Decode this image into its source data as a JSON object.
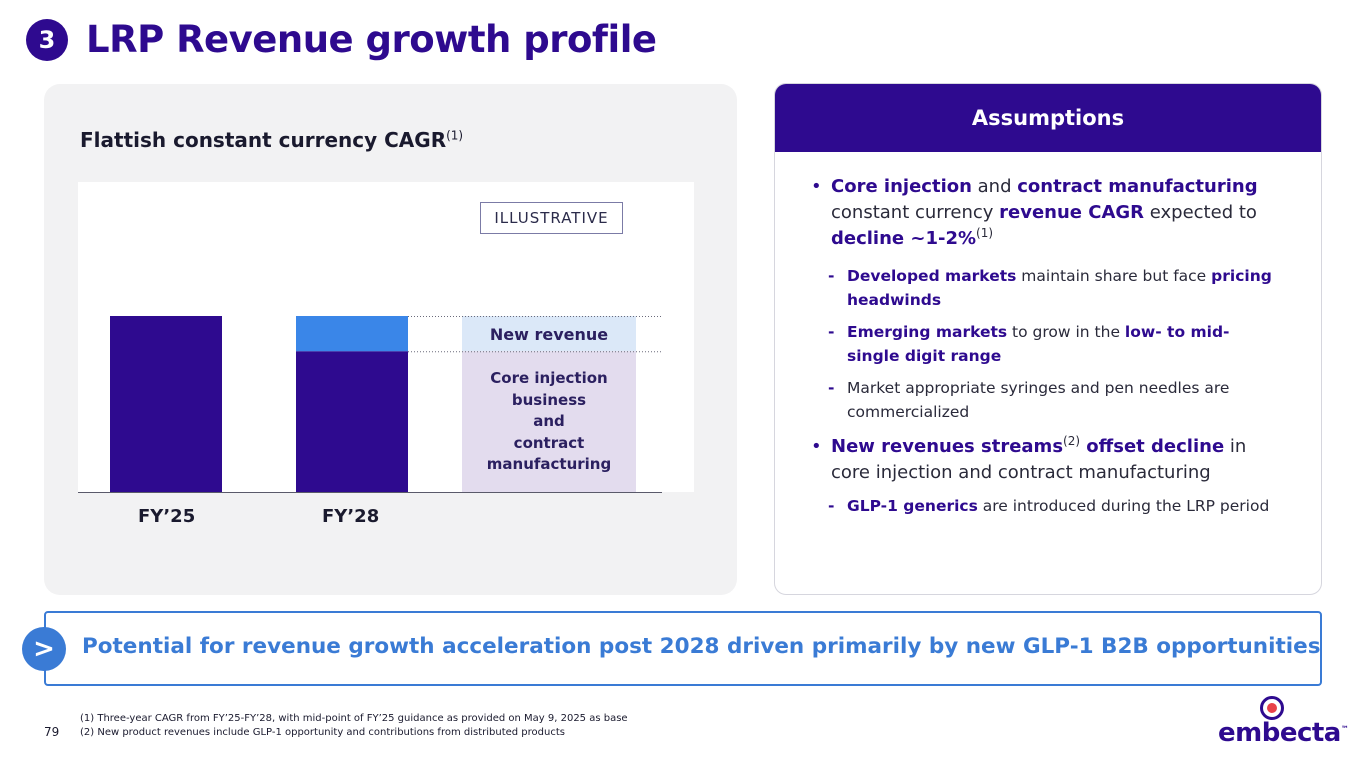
{
  "header": {
    "step_number": "3",
    "title": "LRP Revenue growth profile"
  },
  "left_panel": {
    "heading": "Flattish constant currency CAGR",
    "heading_sup": "(1)",
    "illustrative_label": "ILLUSTRATIVE",
    "new_revenue_label": "New revenue",
    "core_label_lines": [
      "Core injection",
      "business",
      "and",
      "contract",
      "manufacturing"
    ]
  },
  "chart_data": {
    "type": "bar",
    "stacked": true,
    "categories": [
      "FY’25",
      "FY’28"
    ],
    "series": [
      {
        "name": "Core injection business and contract manufacturing",
        "values": [
          100,
          80
        ],
        "color": "#2e0a8f"
      },
      {
        "name": "New revenue",
        "values": [
          0,
          20
        ],
        "color": "#3a86e8"
      }
    ],
    "title": "Flattish constant currency CAGR(1)",
    "xlabel": "",
    "ylabel": "",
    "ylim": [
      0,
      100
    ],
    "note": "ILLUSTRATIVE"
  },
  "assumptions": {
    "header": "Assumptions",
    "b1": {
      "t1": "Core injection",
      "t2": " and ",
      "t3": "contract manufacturing",
      "t4": " constant currency ",
      "t5": "revenue CAGR",
      "t6": " expected to ",
      "t7": "decline ~1-2%",
      "sup": "(1)"
    },
    "s1": {
      "t1": "Developed markets",
      "t2": " maintain share but face ",
      "t3": "pricing headwinds"
    },
    "s2": {
      "t1": "Emerging markets",
      "t2": " to grow in the ",
      "t3": "low- to mid-single digit range"
    },
    "s3": {
      "t1": "Market appropriate syringes and pen needles are commercialized"
    },
    "b2": {
      "t1": "New revenues streams",
      "sup": "(2)",
      "t2": " offset decline",
      "t3": " in core injection and contract manufacturing"
    },
    "s4": {
      "t1": "GLP-1 generics",
      "t2": " are introduced during the LRP period"
    }
  },
  "callout": {
    "arrow": ">",
    "text": "Potential for revenue growth acceleration post 2028 driven primarily by new GLP-1 B2B opportunities"
  },
  "footer": {
    "page_number": "79",
    "footnote_1": "(1) Three-year CAGR from FY’25-FY’28, with mid-point of FY’25 guidance as provided on May 9, 2025 as base",
    "footnote_2": "(2) New product revenues include GLP-1 opportunity and contributions from distributed products",
    "logo_text": "embecta",
    "logo_tm": "™"
  },
  "colors": {
    "brand_purple": "#2e0a8f",
    "accent_blue": "#3a7bd5",
    "new_revenue_fill": "#3a86e8",
    "bridge_new_fill": "#dbe8f8",
    "bridge_core_fill": "#e3dcee"
  }
}
